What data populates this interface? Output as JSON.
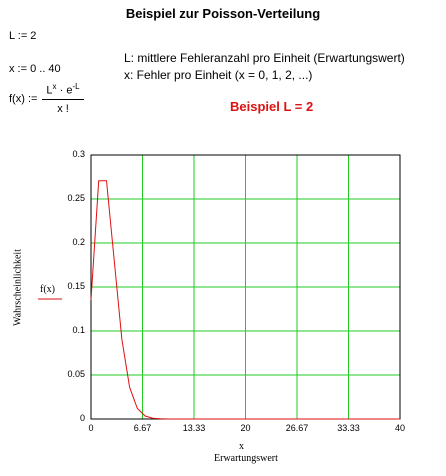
{
  "title": "Beispiel zur Poisson-Verteilung",
  "definitions": {
    "L_def": "L := 2",
    "x_def": "x := 0 .. 40",
    "f_lhs": "f(x) :=",
    "f_numerator_base1": "L",
    "f_numerator_exp1": "x",
    "f_numerator_mid": " · e",
    "f_numerator_exp2": "-L",
    "f_denominator": "x !"
  },
  "description": {
    "line1": "L: mittlere Fehleranzahl pro Einheit (Erwartungswert)",
    "line2": "x: Fehler pro Einheit (x = 0, 1, 2, ...)"
  },
  "example_label": "Beispiel L = 2",
  "chart_data": {
    "type": "line",
    "title": "",
    "xlabel": "x",
    "xlabel_sub": "Erwartungswert",
    "ylabel": "Wahrscheinlichkeit",
    "legend": "f(x)",
    "xlim": [
      0,
      40
    ],
    "ylim": [
      0,
      0.3
    ],
    "x_tick_labels": [
      "0",
      "6.67",
      "13.33",
      "20",
      "26.67",
      "33.33",
      "40"
    ],
    "y_tick_labels": [
      "0",
      "0.05",
      "0.1",
      "0.15",
      "0.2",
      "0.25",
      "0.3"
    ],
    "grid": true,
    "colors": {
      "line": "#dd1111",
      "grid": "#22cc22",
      "frame": "#000000"
    },
    "series": [
      {
        "name": "f(x)",
        "x": [
          0,
          1,
          2,
          3,
          4,
          5,
          6,
          7,
          8,
          9,
          10,
          11,
          12,
          13,
          14,
          15,
          16,
          17,
          18,
          19,
          20,
          21,
          22,
          23,
          24,
          25,
          26,
          27,
          28,
          29,
          30,
          31,
          32,
          33,
          34,
          35,
          36,
          37,
          38,
          39,
          40
        ],
        "values": [
          0.1353,
          0.2707,
          0.2707,
          0.1804,
          0.0902,
          0.0361,
          0.012,
          0.0034,
          0.0009,
          0.0002,
          4e-05,
          0,
          0,
          0,
          0,
          0,
          0,
          0,
          0,
          0,
          0,
          0,
          0,
          0,
          0,
          0,
          0,
          0,
          0,
          0,
          0,
          0,
          0,
          0,
          0,
          0,
          0,
          0,
          0,
          0,
          0
        ]
      }
    ]
  }
}
